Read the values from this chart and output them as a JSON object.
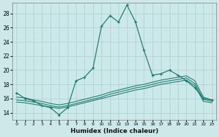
{
  "xlabel": "Humidex (Indice chaleur)",
  "xlim": [
    -0.5,
    23.5
  ],
  "ylim": [
    13.0,
    29.5
  ],
  "yticks": [
    14,
    16,
    18,
    20,
    22,
    24,
    26,
    28
  ],
  "xticks": [
    0,
    1,
    2,
    3,
    4,
    5,
    6,
    7,
    8,
    9,
    10,
    11,
    12,
    13,
    14,
    15,
    16,
    17,
    18,
    19,
    20,
    21,
    22,
    23
  ],
  "bg_color": "#cce8e8",
  "grid_color": "#aacece",
  "line_color": "#1a7a6e",
  "line1_x": [
    0,
    1,
    2,
    3,
    4,
    5,
    6,
    7,
    8,
    9,
    10,
    11,
    12,
    13,
    14,
    15,
    16,
    17,
    18,
    19,
    20,
    21,
    22,
    23
  ],
  "line1_y": [
    16.8,
    16.0,
    15.7,
    15.0,
    14.7,
    13.7,
    14.7,
    18.5,
    19.0,
    20.3,
    26.2,
    27.7,
    26.8,
    29.2,
    26.8,
    22.8,
    19.3,
    19.5,
    20.0,
    19.3,
    18.5,
    17.5,
    16.0,
    15.8
  ],
  "line2_x": [
    0,
    1,
    2,
    3,
    4,
    5,
    6,
    7,
    8,
    9,
    10,
    11,
    12,
    13,
    14,
    15,
    16,
    17,
    18,
    19,
    20,
    21,
    22,
    23
  ],
  "line2_y": [
    16.2,
    16.1,
    15.8,
    15.6,
    15.3,
    15.1,
    15.3,
    15.6,
    15.9,
    16.2,
    16.5,
    16.9,
    17.2,
    17.5,
    17.8,
    18.0,
    18.3,
    18.6,
    18.8,
    19.0,
    19.2,
    18.5,
    16.2,
    15.8
  ],
  "line3_x": [
    0,
    1,
    2,
    3,
    4,
    5,
    6,
    7,
    8,
    9,
    10,
    11,
    12,
    13,
    14,
    15,
    16,
    17,
    18,
    19,
    20,
    21,
    22,
    23
  ],
  "line3_y": [
    15.8,
    15.7,
    15.5,
    15.3,
    15.0,
    14.8,
    15.0,
    15.3,
    15.6,
    15.9,
    16.2,
    16.6,
    16.9,
    17.2,
    17.5,
    17.7,
    18.0,
    18.3,
    18.5,
    18.7,
    18.9,
    18.1,
    15.9,
    15.6
  ],
  "line4_x": [
    0,
    1,
    2,
    3,
    4,
    5,
    6,
    7,
    8,
    9,
    10,
    11,
    12,
    13,
    14,
    15,
    16,
    17,
    18,
    19,
    20,
    21,
    22,
    23
  ],
  "line4_y": [
    15.5,
    15.4,
    15.2,
    15.0,
    14.8,
    14.6,
    14.8,
    15.1,
    15.4,
    15.7,
    16.0,
    16.3,
    16.6,
    16.9,
    17.2,
    17.4,
    17.7,
    18.0,
    18.2,
    18.4,
    18.6,
    17.8,
    15.6,
    15.4
  ]
}
